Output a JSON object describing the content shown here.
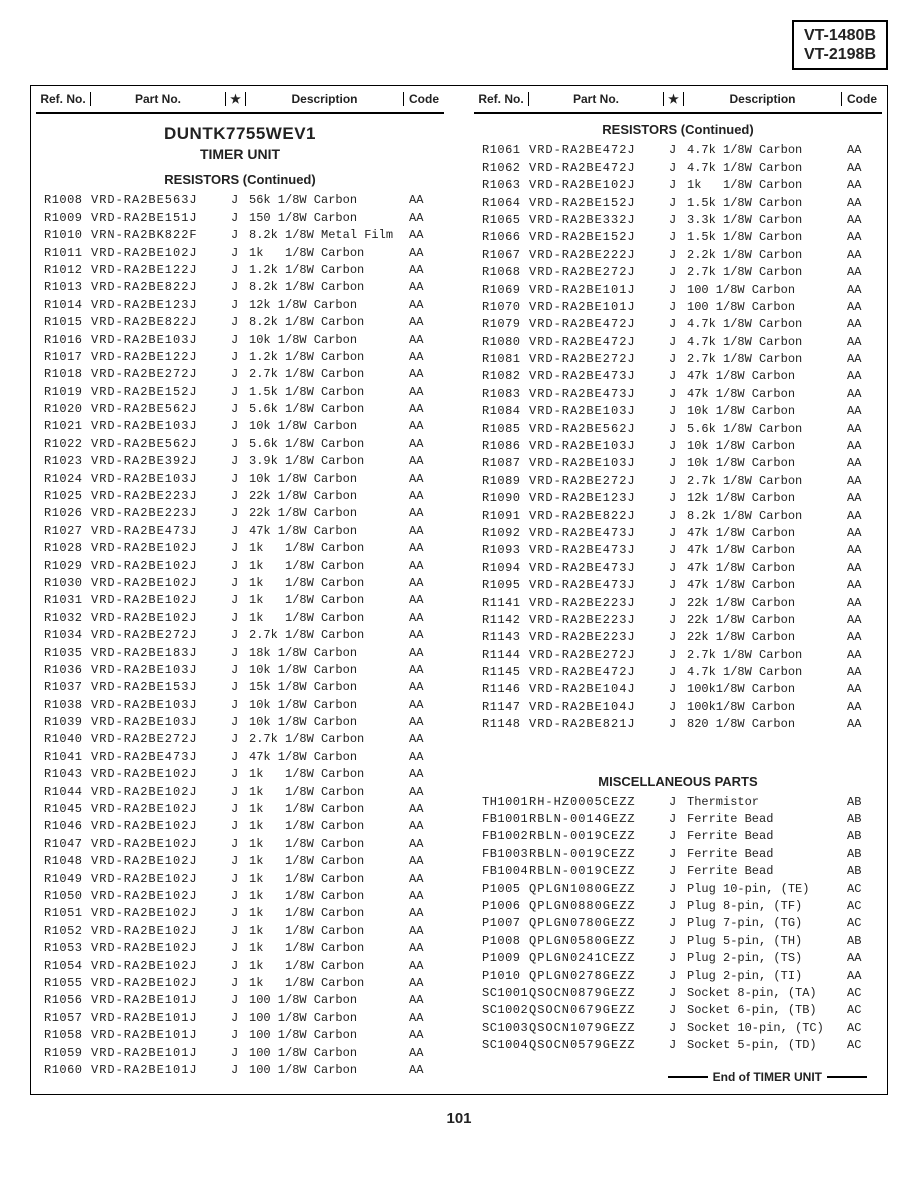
{
  "models": [
    "VT-1480B",
    "VT-2198B"
  ],
  "headers": {
    "ref": "Ref. No.",
    "part": "Part No.",
    "star": "★",
    "desc": "Description",
    "code": "Code"
  },
  "unit_title": "DUNTK7755WEV1",
  "unit_sub": "TIMER UNIT",
  "sect_res": "RESISTORS (Continued)",
  "sect_misc": "MISCELLANEOUS PARTS",
  "end_text": "End of TIMER UNIT",
  "page_num": "101",
  "col1": [
    {
      "ref": "R1008",
      "part": "VRD-RA2BE563J",
      "s": "J",
      "desc": "56k 1/8W Carbon",
      "code": "AA"
    },
    {
      "ref": "R1009",
      "part": "VRD-RA2BE151J",
      "s": "J",
      "desc": "150 1/8W Carbon",
      "code": "AA"
    },
    {
      "ref": "R1010",
      "part": "VRN-RA2BK822F",
      "s": "J",
      "desc": "8.2k 1/8W Metal Film",
      "code": "AA"
    },
    {
      "ref": "R1011",
      "part": "VRD-RA2BE102J",
      "s": "J",
      "desc": "1k   1/8W Carbon",
      "code": "AA"
    },
    {
      "ref": "R1012",
      "part": "VRD-RA2BE122J",
      "s": "J",
      "desc": "1.2k 1/8W Carbon",
      "code": "AA"
    },
    {
      "ref": "R1013",
      "part": "VRD-RA2BE822J",
      "s": "J",
      "desc": "8.2k 1/8W Carbon",
      "code": "AA"
    },
    {
      "ref": "R1014",
      "part": "VRD-RA2BE123J",
      "s": "J",
      "desc": "12k 1/8W Carbon",
      "code": "AA"
    },
    {
      "ref": "R1015",
      "part": "VRD-RA2BE822J",
      "s": "J",
      "desc": "8.2k 1/8W Carbon",
      "code": "AA"
    },
    {
      "ref": "R1016",
      "part": "VRD-RA2BE103J",
      "s": "J",
      "desc": "10k 1/8W Carbon",
      "code": "AA"
    },
    {
      "ref": "R1017",
      "part": "VRD-RA2BE122J",
      "s": "J",
      "desc": "1.2k 1/8W Carbon",
      "code": "AA"
    },
    {
      "ref": "R1018",
      "part": "VRD-RA2BE272J",
      "s": "J",
      "desc": "2.7k 1/8W Carbon",
      "code": "AA"
    },
    {
      "ref": "R1019",
      "part": "VRD-RA2BE152J",
      "s": "J",
      "desc": "1.5k 1/8W Carbon",
      "code": "AA"
    },
    {
      "ref": "R1020",
      "part": "VRD-RA2BE562J",
      "s": "J",
      "desc": "5.6k 1/8W Carbon",
      "code": "AA"
    },
    {
      "ref": "R1021",
      "part": "VRD-RA2BE103J",
      "s": "J",
      "desc": "10k 1/8W Carbon",
      "code": "AA"
    },
    {
      "ref": "R1022",
      "part": "VRD-RA2BE562J",
      "s": "J",
      "desc": "5.6k 1/8W Carbon",
      "code": "AA"
    },
    {
      "ref": "R1023",
      "part": "VRD-RA2BE392J",
      "s": "J",
      "desc": "3.9k 1/8W Carbon",
      "code": "AA"
    },
    {
      "ref": "R1024",
      "part": "VRD-RA2BE103J",
      "s": "J",
      "desc": "10k 1/8W Carbon",
      "code": "AA"
    },
    {
      "ref": "R1025",
      "part": "VRD-RA2BE223J",
      "s": "J",
      "desc": "22k 1/8W Carbon",
      "code": "AA"
    },
    {
      "ref": "R1026",
      "part": "VRD-RA2BE223J",
      "s": "J",
      "desc": "22k 1/8W Carbon",
      "code": "AA"
    },
    {
      "ref": "R1027",
      "part": "VRD-RA2BE473J",
      "s": "J",
      "desc": "47k 1/8W Carbon",
      "code": "AA"
    },
    {
      "ref": "R1028",
      "part": "VRD-RA2BE102J",
      "s": "J",
      "desc": "1k   1/8W Carbon",
      "code": "AA"
    },
    {
      "ref": "R1029",
      "part": "VRD-RA2BE102J",
      "s": "J",
      "desc": "1k   1/8W Carbon",
      "code": "AA"
    },
    {
      "ref": "R1030",
      "part": "VRD-RA2BE102J",
      "s": "J",
      "desc": "1k   1/8W Carbon",
      "code": "AA"
    },
    {
      "ref": "R1031",
      "part": "VRD-RA2BE102J",
      "s": "J",
      "desc": "1k   1/8W Carbon",
      "code": "AA"
    },
    {
      "ref": "R1032",
      "part": "VRD-RA2BE102J",
      "s": "J",
      "desc": "1k   1/8W Carbon",
      "code": "AA"
    },
    {
      "ref": "R1034",
      "part": "VRD-RA2BE272J",
      "s": "J",
      "desc": "2.7k 1/8W Carbon",
      "code": "AA"
    },
    {
      "ref": "R1035",
      "part": "VRD-RA2BE183J",
      "s": "J",
      "desc": "18k 1/8W Carbon",
      "code": "AA"
    },
    {
      "ref": "R1036",
      "part": "VRD-RA2BE103J",
      "s": "J",
      "desc": "10k 1/8W Carbon",
      "code": "AA"
    },
    {
      "ref": "R1037",
      "part": "VRD-RA2BE153J",
      "s": "J",
      "desc": "15k 1/8W Carbon",
      "code": "AA"
    },
    {
      "ref": "R1038",
      "part": "VRD-RA2BE103J",
      "s": "J",
      "desc": "10k 1/8W Carbon",
      "code": "AA"
    },
    {
      "ref": "R1039",
      "part": "VRD-RA2BE103J",
      "s": "J",
      "desc": "10k 1/8W Carbon",
      "code": "AA"
    },
    {
      "ref": "R1040",
      "part": "VRD-RA2BE272J",
      "s": "J",
      "desc": "2.7k 1/8W Carbon",
      "code": "AA"
    },
    {
      "ref": "R1041",
      "part": "VRD-RA2BE473J",
      "s": "J",
      "desc": "47k 1/8W Carbon",
      "code": "AA"
    },
    {
      "ref": "R1043",
      "part": "VRD-RA2BE102J",
      "s": "J",
      "desc": "1k   1/8W Carbon",
      "code": "AA"
    },
    {
      "ref": "R1044",
      "part": "VRD-RA2BE102J",
      "s": "J",
      "desc": "1k   1/8W Carbon",
      "code": "AA"
    },
    {
      "ref": "R1045",
      "part": "VRD-RA2BE102J",
      "s": "J",
      "desc": "1k   1/8W Carbon",
      "code": "AA"
    },
    {
      "ref": "R1046",
      "part": "VRD-RA2BE102J",
      "s": "J",
      "desc": "1k   1/8W Carbon",
      "code": "AA"
    },
    {
      "ref": "R1047",
      "part": "VRD-RA2BE102J",
      "s": "J",
      "desc": "1k   1/8W Carbon",
      "code": "AA"
    },
    {
      "ref": "R1048",
      "part": "VRD-RA2BE102J",
      "s": "J",
      "desc": "1k   1/8W Carbon",
      "code": "AA"
    },
    {
      "ref": "R1049",
      "part": "VRD-RA2BE102J",
      "s": "J",
      "desc": "1k   1/8W Carbon",
      "code": "AA"
    },
    {
      "ref": "R1050",
      "part": "VRD-RA2BE102J",
      "s": "J",
      "desc": "1k   1/8W Carbon",
      "code": "AA"
    },
    {
      "ref": "R1051",
      "part": "VRD-RA2BE102J",
      "s": "J",
      "desc": "1k   1/8W Carbon",
      "code": "AA"
    },
    {
      "ref": "R1052",
      "part": "VRD-RA2BE102J",
      "s": "J",
      "desc": "1k   1/8W Carbon",
      "code": "AA"
    },
    {
      "ref": "R1053",
      "part": "VRD-RA2BE102J",
      "s": "J",
      "desc": "1k   1/8W Carbon",
      "code": "AA"
    },
    {
      "ref": "R1054",
      "part": "VRD-RA2BE102J",
      "s": "J",
      "desc": "1k   1/8W Carbon",
      "code": "AA"
    },
    {
      "ref": "R1055",
      "part": "VRD-RA2BE102J",
      "s": "J",
      "desc": "1k   1/8W Carbon",
      "code": "AA"
    },
    {
      "ref": "R1056",
      "part": "VRD-RA2BE101J",
      "s": "J",
      "desc": "100 1/8W Carbon",
      "code": "AA"
    },
    {
      "ref": "R1057",
      "part": "VRD-RA2BE101J",
      "s": "J",
      "desc": "100 1/8W Carbon",
      "code": "AA"
    },
    {
      "ref": "R1058",
      "part": "VRD-RA2BE101J",
      "s": "J",
      "desc": "100 1/8W Carbon",
      "code": "AA"
    },
    {
      "ref": "R1059",
      "part": "VRD-RA2BE101J",
      "s": "J",
      "desc": "100 1/8W Carbon",
      "code": "AA"
    },
    {
      "ref": "R1060",
      "part": "VRD-RA2BE101J",
      "s": "J",
      "desc": "100 1/8W Carbon",
      "code": "AA"
    }
  ],
  "col2_res": [
    {
      "ref": "R1061",
      "part": "VRD-RA2BE472J",
      "s": "J",
      "desc": "4.7k 1/8W Carbon",
      "code": "AA"
    },
    {
      "ref": "R1062",
      "part": "VRD-RA2BE472J",
      "s": "J",
      "desc": "4.7k 1/8W Carbon",
      "code": "AA"
    },
    {
      "ref": "R1063",
      "part": "VRD-RA2BE102J",
      "s": "J",
      "desc": "1k   1/8W Carbon",
      "code": "AA"
    },
    {
      "ref": "R1064",
      "part": "VRD-RA2BE152J",
      "s": "J",
      "desc": "1.5k 1/8W Carbon",
      "code": "AA"
    },
    {
      "ref": "R1065",
      "part": "VRD-RA2BE332J",
      "s": "J",
      "desc": "3.3k 1/8W Carbon",
      "code": "AA"
    },
    {
      "ref": "R1066",
      "part": "VRD-RA2BE152J",
      "s": "J",
      "desc": "1.5k 1/8W Carbon",
      "code": "AA"
    },
    {
      "ref": "R1067",
      "part": "VRD-RA2BE222J",
      "s": "J",
      "desc": "2.2k 1/8W Carbon",
      "code": "AA"
    },
    {
      "ref": "R1068",
      "part": "VRD-RA2BE272J",
      "s": "J",
      "desc": "2.7k 1/8W Carbon",
      "code": "AA"
    },
    {
      "ref": "R1069",
      "part": "VRD-RA2BE101J",
      "s": "J",
      "desc": "100 1/8W Carbon",
      "code": "AA"
    },
    {
      "ref": "R1070",
      "part": "VRD-RA2BE101J",
      "s": "J",
      "desc": "100 1/8W Carbon",
      "code": "AA"
    },
    {
      "ref": "R1079",
      "part": "VRD-RA2BE472J",
      "s": "J",
      "desc": "4.7k 1/8W Carbon",
      "code": "AA"
    },
    {
      "ref": "R1080",
      "part": "VRD-RA2BE472J",
      "s": "J",
      "desc": "4.7k 1/8W Carbon",
      "code": "AA"
    },
    {
      "ref": "R1081",
      "part": "VRD-RA2BE272J",
      "s": "J",
      "desc": "2.7k 1/8W Carbon",
      "code": "AA"
    },
    {
      "ref": "R1082",
      "part": "VRD-RA2BE473J",
      "s": "J",
      "desc": "47k 1/8W Carbon",
      "code": "AA"
    },
    {
      "ref": "R1083",
      "part": "VRD-RA2BE473J",
      "s": "J",
      "desc": "47k 1/8W Carbon",
      "code": "AA"
    },
    {
      "ref": "R1084",
      "part": "VRD-RA2BE103J",
      "s": "J",
      "desc": "10k 1/8W Carbon",
      "code": "AA"
    },
    {
      "ref": "R1085",
      "part": "VRD-RA2BE562J",
      "s": "J",
      "desc": "5.6k 1/8W Carbon",
      "code": "AA"
    },
    {
      "ref": "R1086",
      "part": "VRD-RA2BE103J",
      "s": "J",
      "desc": "10k 1/8W Carbon",
      "code": "AA"
    },
    {
      "ref": "R1087",
      "part": "VRD-RA2BE103J",
      "s": "J",
      "desc": "10k 1/8W Carbon",
      "code": "AA"
    },
    {
      "ref": "R1089",
      "part": "VRD-RA2BE272J",
      "s": "J",
      "desc": "2.7k 1/8W Carbon",
      "code": "AA"
    },
    {
      "ref": "R1090",
      "part": "VRD-RA2BE123J",
      "s": "J",
      "desc": "12k 1/8W Carbon",
      "code": "AA"
    },
    {
      "ref": "R1091",
      "part": "VRD-RA2BE822J",
      "s": "J",
      "desc": "8.2k 1/8W Carbon",
      "code": "AA"
    },
    {
      "ref": "R1092",
      "part": "VRD-RA2BE473J",
      "s": "J",
      "desc": "47k 1/8W Carbon",
      "code": "AA"
    },
    {
      "ref": "R1093",
      "part": "VRD-RA2BE473J",
      "s": "J",
      "desc": "47k 1/8W Carbon",
      "code": "AA"
    },
    {
      "ref": "R1094",
      "part": "VRD-RA2BE473J",
      "s": "J",
      "desc": "47k 1/8W Carbon",
      "code": "AA"
    },
    {
      "ref": "R1095",
      "part": "VRD-RA2BE473J",
      "s": "J",
      "desc": "47k 1/8W Carbon",
      "code": "AA"
    },
    {
      "ref": "R1141",
      "part": "VRD-RA2BE223J",
      "s": "J",
      "desc": "22k 1/8W Carbon",
      "code": "AA"
    },
    {
      "ref": "R1142",
      "part": "VRD-RA2BE223J",
      "s": "J",
      "desc": "22k 1/8W Carbon",
      "code": "AA"
    },
    {
      "ref": "R1143",
      "part": "VRD-RA2BE223J",
      "s": "J",
      "desc": "22k 1/8W Carbon",
      "code": "AA"
    },
    {
      "ref": "R1144",
      "part": "VRD-RA2BE272J",
      "s": "J",
      "desc": "2.7k 1/8W Carbon",
      "code": "AA"
    },
    {
      "ref": "R1145",
      "part": "VRD-RA2BE472J",
      "s": "J",
      "desc": "4.7k 1/8W Carbon",
      "code": "AA"
    },
    {
      "ref": "R1146",
      "part": "VRD-RA2BE104J",
      "s": "J",
      "desc": "100k1/8W Carbon",
      "code": "AA"
    },
    {
      "ref": "R1147",
      "part": "VRD-RA2BE104J",
      "s": "J",
      "desc": "100k1/8W Carbon",
      "code": "AA"
    },
    {
      "ref": "R1148",
      "part": "VRD-RA2BE821J",
      "s": "J",
      "desc": "820 1/8W Carbon",
      "code": "AA"
    }
  ],
  "col2_misc": [
    {
      "ref": "TH1001",
      "part": "RH-HZ0005CEZZ",
      "s": "J",
      "desc": "Thermistor",
      "code": "AB"
    },
    {
      "ref": "FB1001",
      "part": "RBLN-0014GEZZ",
      "s": "J",
      "desc": "Ferrite Bead",
      "code": "AB"
    },
    {
      "ref": "FB1002",
      "part": "RBLN-0019CEZZ",
      "s": "J",
      "desc": "Ferrite Bead",
      "code": "AB"
    },
    {
      "ref": "FB1003",
      "part": "RBLN-0019CEZZ",
      "s": "J",
      "desc": "Ferrite Bead",
      "code": "AB"
    },
    {
      "ref": "FB1004",
      "part": "RBLN-0019CEZZ",
      "s": "J",
      "desc": "Ferrite Bead",
      "code": "AB"
    },
    {
      "ref": "P1005",
      "part": "QPLGN1080GEZZ",
      "s": "J",
      "desc": "Plug 10-pin, (TE)",
      "code": "AC"
    },
    {
      "ref": "P1006",
      "part": "QPLGN0880GEZZ",
      "s": "J",
      "desc": "Plug 8-pin, (TF)",
      "code": "AC"
    },
    {
      "ref": "P1007",
      "part": "QPLGN0780GEZZ",
      "s": "J",
      "desc": "Plug 7-pin, (TG)",
      "code": "AC"
    },
    {
      "ref": "P1008",
      "part": "QPLGN0580GEZZ",
      "s": "J",
      "desc": "Plug 5-pin, (TH)",
      "code": "AB"
    },
    {
      "ref": "P1009",
      "part": "QPLGN0241CEZZ",
      "s": "J",
      "desc": "Plug 2-pin, (TS)",
      "code": "AA"
    },
    {
      "ref": "P1010",
      "part": "QPLGN0278GEZZ",
      "s": "J",
      "desc": "Plug 2-pin, (TI)",
      "code": "AA"
    },
    {
      "ref": "SC1001",
      "part": "QSOCN0879GEZZ",
      "s": "J",
      "desc": "Socket 8-pin, (TA)",
      "code": "AC"
    },
    {
      "ref": "SC1002",
      "part": "QSOCN0679GEZZ",
      "s": "J",
      "desc": "Socket 6-pin, (TB)",
      "code": "AC"
    },
    {
      "ref": "SC1003",
      "part": "QSOCN1079GEZZ",
      "s": "J",
      "desc": "Socket 10-pin, (TC)",
      "code": "AC"
    },
    {
      "ref": "SC1004",
      "part": "QSOCN0579GEZZ",
      "s": "J",
      "desc": "Socket 5-pin, (TD)",
      "code": "AC"
    }
  ]
}
